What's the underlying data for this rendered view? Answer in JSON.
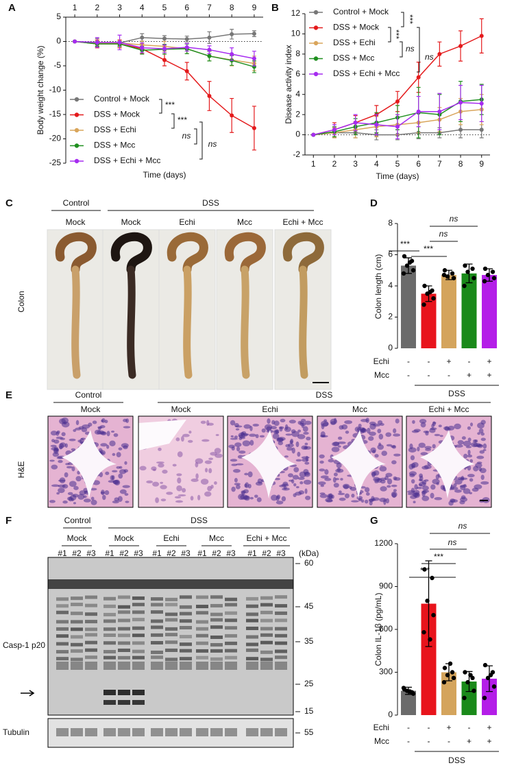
{
  "chart_data": [
    {
      "letter": "A",
      "type": "line",
      "xlabel": "Time (days)",
      "ylabel": "Body weight change (%)",
      "x": [
        1,
        2,
        3,
        4,
        5,
        6,
        7,
        8,
        9
      ],
      "xlim": [
        0.6,
        9.4
      ],
      "xticks": [
        1,
        2,
        3,
        4,
        5,
        6,
        7,
        8,
        9
      ],
      "xaxis": "top",
      "ylim": [
        -25,
        5
      ],
      "yticks": [
        5,
        0,
        -5,
        -10,
        -15,
        -20,
        -25
      ],
      "zero_line": true,
      "legend": "lower left",
      "series": [
        {
          "name": "Control + Mock",
          "color": "#777777",
          "values": [
            0,
            -0.2,
            -0.3,
            0.8,
            0.6,
            0.5,
            0.8,
            1.5,
            1.6
          ],
          "errors": [
            0,
            0.8,
            0.6,
            0.8,
            0.6,
            0.6,
            1.2,
            1,
            0.6
          ]
        },
        {
          "name": "DSS + Mock",
          "color": "#e41a1c",
          "values": [
            0,
            -0.5,
            -0.5,
            -1.5,
            -3.8,
            -6.1,
            -11.2,
            -15.2,
            -17.8
          ],
          "errors": [
            0,
            0.8,
            0.8,
            1,
            1.2,
            1.8,
            3,
            3.5,
            4.5
          ]
        },
        {
          "name": "DSS + Echi",
          "color": "#d9a55b",
          "values": [
            0,
            -0.3,
            -0.3,
            -0.7,
            -1,
            -1.5,
            -3,
            -3.8,
            -4.5
          ],
          "errors": [
            0,
            0.5,
            0.5,
            0.8,
            1,
            1,
            1,
            1.2,
            1.5
          ]
        },
        {
          "name": "DSS + Mcc",
          "color": "#1f8f1f",
          "values": [
            0,
            -0.5,
            -0.5,
            -1.8,
            -1.6,
            -1.5,
            -3,
            -3.9,
            -5.2
          ],
          "errors": [
            0,
            0.5,
            0.5,
            0.8,
            1,
            1,
            1,
            1,
            1.2
          ]
        },
        {
          "name": "DSS + Echi + Mcc",
          "color": "#a62cf0",
          "values": [
            0,
            -0.2,
            -0.2,
            -1.3,
            -1.5,
            -1.2,
            -1.7,
            -2.6,
            -3.5
          ],
          "errors": [
            0,
            1,
            1.5,
            1,
            0.8,
            0.8,
            0.8,
            1.3,
            1.5
          ]
        }
      ],
      "annotations": [
        "***",
        "***",
        "ns",
        "ns"
      ]
    },
    {
      "letter": "B",
      "type": "line",
      "xlabel": "Time (days)",
      "ylabel": "Disease activity index",
      "x": [
        1,
        2,
        3,
        4,
        5,
        6,
        7,
        8,
        9
      ],
      "xlim": [
        0.6,
        9.4
      ],
      "xticks": [
        1,
        2,
        3,
        4,
        5,
        6,
        7,
        8,
        9
      ],
      "xaxis": "bottom",
      "ylim": [
        -2,
        12
      ],
      "yticks": [
        -2,
        0,
        2,
        4,
        6,
        8,
        10,
        12
      ],
      "zero_line": true,
      "legend": "upper left",
      "series": [
        {
          "name": "Control + Mock",
          "color": "#777777",
          "values": [
            0,
            0.2,
            0.2,
            0,
            0,
            0.2,
            0.2,
            0.5,
            0.5
          ],
          "errors": [
            0,
            0.5,
            0.5,
            0.5,
            0.5,
            0.6,
            0.5,
            0.8,
            0.8
          ]
        },
        {
          "name": "DSS + Mock",
          "color": "#e41a1c",
          "values": [
            0,
            0.5,
            1.2,
            2,
            3.3,
            5.7,
            8,
            8.8,
            9.8
          ],
          "errors": [
            0,
            0.7,
            0.7,
            0.9,
            1,
            1.5,
            1.2,
            1.5,
            1.7
          ]
        },
        {
          "name": "DSS + Echi",
          "color": "#d9a55b",
          "values": [
            0,
            0.2,
            0.5,
            0.8,
            1,
            1.2,
            1.5,
            2.3,
            2.5
          ],
          "errors": [
            0,
            0.5,
            0.8,
            1,
            1,
            1,
            1.2,
            1.3,
            1.5
          ]
        },
        {
          "name": "DSS + Mcc",
          "color": "#1f8f1f",
          "values": [
            0,
            0.3,
            0.8,
            1.2,
            1.7,
            2.2,
            2,
            3.3,
            3.5
          ],
          "errors": [
            0,
            0.5,
            0.8,
            1,
            1.2,
            2.5,
            2,
            2,
            1.5
          ]
        },
        {
          "name": "DSS + Echi + Mcc",
          "color": "#a62cf0",
          "values": [
            0,
            0.5,
            1.2,
            1,
            0.8,
            2.3,
            2.3,
            3.2,
            3.1
          ],
          "errors": [
            0,
            0.5,
            0.8,
            1,
            1.2,
            1.5,
            1.8,
            1.7,
            1.8
          ]
        }
      ],
      "annotations": [
        "***",
        "***",
        "ns",
        "ns"
      ]
    },
    {
      "letter": "D",
      "type": "bar",
      "ylabel": "Colon length (cm)",
      "categories": [
        null,
        null,
        null,
        null,
        null
      ],
      "values": [
        5.3,
        3.5,
        4.7,
        4.8,
        4.7
      ],
      "errors": [
        0.5,
        0.5,
        0.3,
        0.6,
        0.4
      ],
      "colors": [
        "#6b6b6b",
        "#e8141c",
        "#d4a45c",
        "#1a8a1a",
        "#b41ee8"
      ],
      "points": [
        [
          5.9,
          5.6,
          5.3,
          5.0,
          4.8,
          5.5
        ],
        [
          4.0,
          3.7,
          3.5,
          3.2,
          2.8,
          3.6
        ],
        [
          5.0,
          4.8,
          4.6,
          4.5,
          4.7
        ],
        [
          5.3,
          5.1,
          4.9,
          4.5,
          4.0
        ],
        [
          5.1,
          4.9,
          4.7,
          4.5,
          4.3
        ]
      ],
      "ylim": [
        0,
        8
      ],
      "yticks": [
        0,
        2,
        4,
        6,
        8
      ],
      "rows": [
        {
          "label": "Echi",
          "marks": [
            "-",
            "-",
            "+",
            "-",
            "+"
          ]
        },
        {
          "label": "Mcc",
          "marks": [
            "-",
            "-",
            "-",
            "+",
            "+"
          ]
        }
      ],
      "group_label": "DSS",
      "annotations": [
        "ns",
        "ns",
        "***",
        "***"
      ]
    },
    {
      "letter": "G",
      "type": "bar",
      "ylabel": "Colon IL-1β (pg/mL)",
      "categories": [
        null,
        null,
        null,
        null,
        null
      ],
      "values": [
        170,
        780,
        300,
        235,
        255
      ],
      "errors": [
        25,
        300,
        60,
        70,
        90
      ],
      "colors": [
        "#6b6b6b",
        "#e8141c",
        "#d4a45c",
        "#1a8a1a",
        "#b41ee8"
      ],
      "points": [
        [
          180,
          160,
          170,
          150,
          190,
          165
        ],
        [
          1020,
          960,
          800,
          700,
          580,
          530
        ],
        [
          330,
          300,
          280,
          260,
          230,
          360
        ],
        [
          300,
          260,
          230,
          170,
          120,
          280
        ],
        [
          350,
          300,
          260,
          200,
          120,
          280
        ]
      ],
      "ylim": [
        0,
        1200
      ],
      "yticks": [
        0,
        300,
        600,
        900,
        1200
      ],
      "rows": [
        {
          "label": "Echi",
          "marks": [
            "-",
            "-",
            "+",
            "-",
            "+"
          ]
        },
        {
          "label": "Mcc",
          "marks": [
            "-",
            "-",
            "-",
            "+",
            "+"
          ]
        }
      ],
      "group_label": "DSS",
      "annotations": [
        "ns",
        "ns",
        "***",
        "***"
      ]
    }
  ],
  "photo_panels": {
    "C": {
      "letter": "C",
      "groups": [
        "Control",
        "DSS"
      ],
      "lanes": [
        "Mock",
        "Mock",
        "Echi",
        "Mcc",
        "Echi + Mcc"
      ],
      "row_label": "Colon"
    },
    "E": {
      "letter": "E",
      "groups": [
        "Control",
        "DSS"
      ],
      "lanes": [
        "Mock",
        "Mock",
        "Echi",
        "Mcc",
        "Echi + Mcc"
      ],
      "row_label": "H&E"
    },
    "F": {
      "letter": "F",
      "groups": [
        "Control",
        "DSS"
      ],
      "lanes": [
        "Mock",
        "Mock",
        "Echi",
        "Mcc",
        "Echi + Mcc"
      ],
      "samples": [
        "#1",
        "#2",
        "#3"
      ],
      "unit": "(kDa)",
      "markers": [
        60,
        45,
        35,
        25,
        15
      ],
      "loading_marker": 55,
      "row_labels": [
        "Casp-1 p20",
        "Tubulin"
      ]
    }
  }
}
